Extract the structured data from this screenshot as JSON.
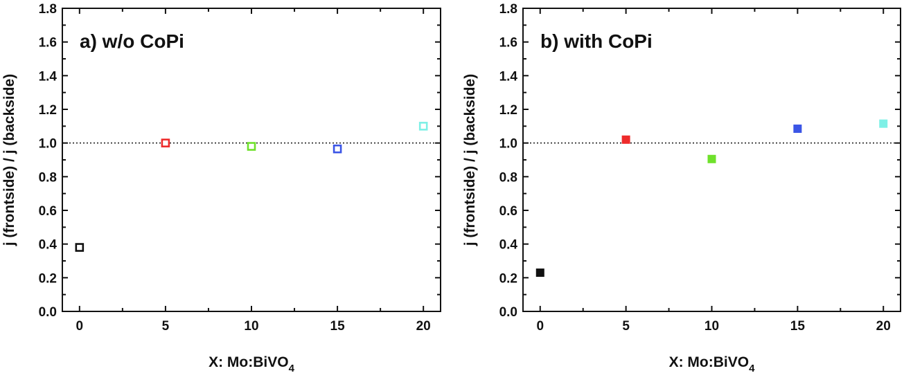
{
  "chart_data": [
    {
      "type": "scatter",
      "title": "a) w/o CoPi",
      "xlabel": "X: Mo:BiVO",
      "xlabel_subscript": "4",
      "ylabel": "j (frontside) / j (backside)",
      "xlim": [
        -1,
        21
      ],
      "ylim": [
        0,
        1.8
      ],
      "xticks": [
        "0",
        "5",
        "10",
        "15",
        "20"
      ],
      "yticks": [
        "0.0",
        "0.2",
        "0.4",
        "0.6",
        "0.8",
        "1.0",
        "1.2",
        "1.4",
        "1.6",
        "1.8"
      ],
      "reference_line_y": 1.0,
      "marker_style": "open square",
      "points": [
        {
          "x": 0,
          "y": 0.38,
          "color": "#111111"
        },
        {
          "x": 5,
          "y": 1.0,
          "color": "#ee2b2b"
        },
        {
          "x": 10,
          "y": 0.98,
          "color": "#6fe12b"
        },
        {
          "x": 15,
          "y": 0.965,
          "color": "#3b55e6"
        },
        {
          "x": 20,
          "y": 1.1,
          "color": "#7ef0e6"
        }
      ]
    },
    {
      "type": "scatter",
      "title": "b) with CoPi",
      "xlabel": "X: Mo:BiVO",
      "xlabel_subscript": "4",
      "ylabel": "j (frontside) / j (backside)",
      "xlim": [
        -1,
        21
      ],
      "ylim": [
        0,
        1.8
      ],
      "xticks": [
        "0",
        "5",
        "10",
        "15",
        "20"
      ],
      "yticks": [
        "0.0",
        "0.2",
        "0.4",
        "0.6",
        "0.8",
        "1.0",
        "1.2",
        "1.4",
        "1.6",
        "1.8"
      ],
      "reference_line_y": 1.0,
      "marker_style": "filled square",
      "points": [
        {
          "x": 0,
          "y": 0.23,
          "color": "#111111"
        },
        {
          "x": 5,
          "y": 1.02,
          "color": "#ee2b2b"
        },
        {
          "x": 10,
          "y": 0.905,
          "color": "#6fe12b"
        },
        {
          "x": 15,
          "y": 1.085,
          "color": "#3b55e6"
        },
        {
          "x": 20,
          "y": 1.115,
          "color": "#7ef0e6"
        }
      ]
    }
  ]
}
